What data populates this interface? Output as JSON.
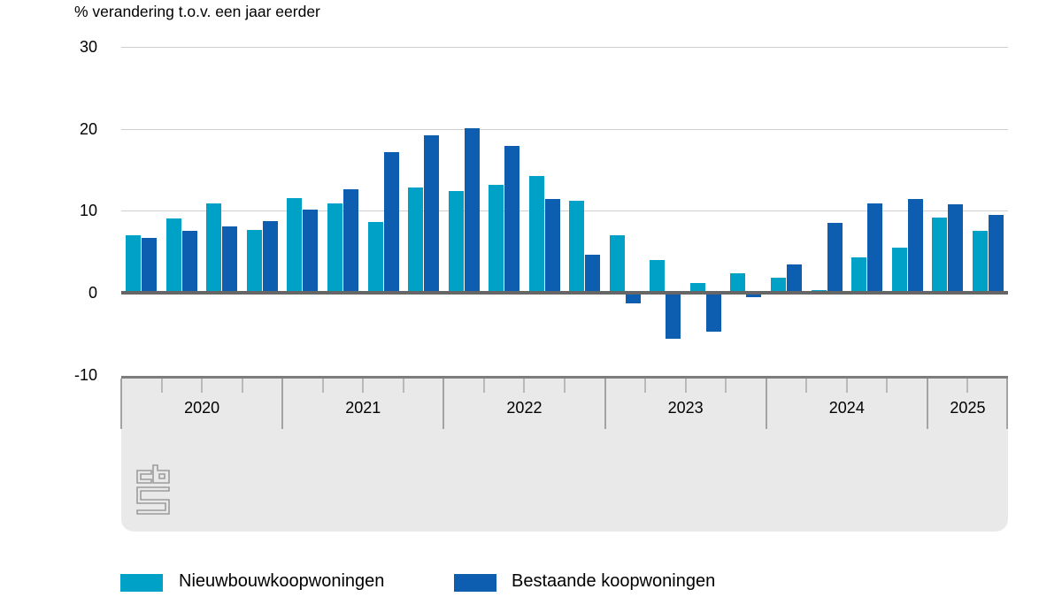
{
  "title": "% verandering t.o.v. een jaar eerder",
  "y_axis": {
    "tick_labels": [
      "30",
      "20",
      "10",
      "0",
      "-10"
    ],
    "tick_values": [
      30,
      20,
      10,
      0,
      -10
    ]
  },
  "x_axis": {
    "years": [
      {
        "label": "2020",
        "quarters": 4
      },
      {
        "label": "2021",
        "quarters": 4
      },
      {
        "label": "2022",
        "quarters": 4
      },
      {
        "label": "2023",
        "quarters": 4
      },
      {
        "label": "2024",
        "quarters": 4
      },
      {
        "label": "2025",
        "quarters": 2
      }
    ]
  },
  "legend": {
    "items": [
      {
        "label": "Nieuwbouwkoopwoningen",
        "color": "#00a1c6"
      },
      {
        "label": "Bestaande koopwoningen",
        "color": "#0d5eb1"
      }
    ]
  },
  "branding": {
    "logo": "cbs-logo"
  },
  "colors": {
    "series_light": "#00a1c6",
    "series_dark": "#0d5eb1",
    "gridline": "#cfcfcf",
    "zero_line": "#666666",
    "band_background": "#e9e9e9",
    "band_border": "#7d7d7d"
  },
  "chart_data": {
    "type": "bar",
    "title": "% verandering t.o.v. een jaar eerder",
    "ylabel": "% verandering t.o.v. een jaar eerder",
    "ylim": [
      -10,
      30
    ],
    "y_gridlines": [
      10,
      20,
      30
    ],
    "grid": true,
    "legend_position": "bottom",
    "categories": [
      "2020 Q1",
      "2020 Q2",
      "2020 Q3",
      "2020 Q4",
      "2021 Q1",
      "2021 Q2",
      "2021 Q3",
      "2021 Q4",
      "2022 Q1",
      "2022 Q2",
      "2022 Q3",
      "2022 Q4",
      "2023 Q1",
      "2023 Q2",
      "2023 Q3",
      "2023 Q4",
      "2024 Q1",
      "2024 Q2",
      "2024 Q3",
      "2024 Q4",
      "2025 Q1",
      "2025 Q2"
    ],
    "series": [
      {
        "name": "Nieuwbouwkoopwoningen",
        "color": "#00a1c6",
        "values": [
          7.0,
          9.1,
          10.9,
          7.7,
          11.5,
          10.9,
          8.6,
          12.8,
          12.4,
          13.2,
          14.2,
          11.2,
          7.0,
          4.0,
          1.2,
          2.4,
          1.8,
          0.3,
          4.3,
          5.5,
          9.2,
          7.6
        ]
      },
      {
        "name": "Bestaande koopwoningen",
        "color": "#0d5eb1",
        "values": [
          6.7,
          7.5,
          8.1,
          8.7,
          10.1,
          12.6,
          17.1,
          19.2,
          20.1,
          17.9,
          11.4,
          4.6,
          -1.3,
          -5.6,
          -4.7,
          -0.5,
          3.5,
          8.5,
          10.9,
          11.4,
          10.8,
          9.5
        ]
      }
    ]
  }
}
